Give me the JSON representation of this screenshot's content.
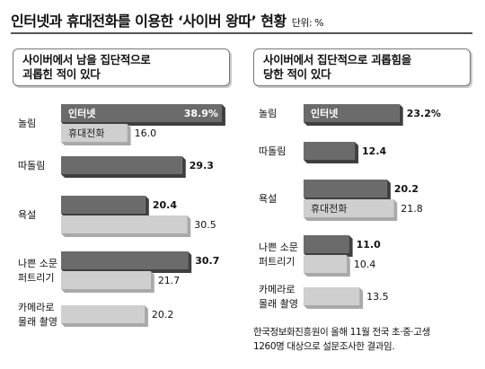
{
  "title": {
    "main": "인터넷과 휴대전화를 이용한 ‘사이버 왕따’ 현황",
    "unit": "단위: %"
  },
  "footnote": {
    "line1": "한국정보화진흥원이 올해 11월 전국 초·중·고생",
    "line2": "1260명 대상으로 설문조사한 결과임."
  },
  "colors": {
    "internet": "#6b6b6b",
    "mobile": "#cfcfcf"
  },
  "chart_data": [
    {
      "type": "bar",
      "title": "사이버에서 남을 집단적으로 괴롭힌 적이 있다",
      "title_lines": [
        "사이버에서 남을 집단적으로",
        "괴롭힌 적이 있다"
      ],
      "categories": [
        "놀림",
        "따돌림",
        "욕설",
        "나쁜 소문 퍼트리기",
        "카메라로 몰래 촬영"
      ],
      "category_lines": [
        [
          "놀림"
        ],
        [
          "따돌림"
        ],
        [
          "욕설"
        ],
        [
          "나쁜 소문",
          "퍼트리기"
        ],
        [
          "카메라로",
          "몰래 촬영"
        ]
      ],
      "series": [
        {
          "name": "인터넷",
          "values": [
            38.9,
            29.3,
            20.4,
            30.7,
            null
          ]
        },
        {
          "name": "휴대전화",
          "values": [
            16.0,
            null,
            30.5,
            21.7,
            20.2
          ]
        }
      ],
      "value_labels": {
        "인터넷": [
          "38.9%",
          "29.3",
          "20.4",
          "30.7",
          null
        ],
        "휴대전화": [
          "16.0",
          null,
          "30.5",
          "21.7",
          "20.2"
        ]
      },
      "legend_labels_on_bars": {
        "인터넷": 0,
        "휴대전화": 0
      },
      "xlim": [
        0,
        40
      ]
    },
    {
      "type": "bar",
      "title": "사이버에서 집단적으로 괴롭힘을 당한 적이 있다",
      "title_lines": [
        "사이버에서 집단적으로 괴롭힘을",
        "당한 적이 있다"
      ],
      "categories": [
        "놀림",
        "따돌림",
        "욕설",
        "나쁜 소문 퍼트리기",
        "카메라로 몰래 촬영"
      ],
      "category_lines": [
        [
          "놀림"
        ],
        [
          "따돌림"
        ],
        [
          "욕설"
        ],
        [
          "나쁜 소문",
          "퍼트리기"
        ],
        [
          "카메라로",
          "몰래 촬영"
        ]
      ],
      "series": [
        {
          "name": "인터넷",
          "values": [
            23.2,
            12.4,
            20.2,
            11.0,
            null
          ]
        },
        {
          "name": "휴대전화",
          "values": [
            null,
            null,
            21.8,
            10.4,
            13.5
          ]
        }
      ],
      "value_labels": {
        "인터넷": [
          "23.2%",
          "12.4",
          "20.2",
          "11.0",
          null
        ],
        "휴대전화": [
          null,
          null,
          "21.8",
          "10.4",
          "13.5"
        ]
      },
      "legend_labels_on_bars": {
        "인터넷": 0,
        "휴대전화": 2
      },
      "xlim": [
        0,
        40
      ]
    }
  ]
}
